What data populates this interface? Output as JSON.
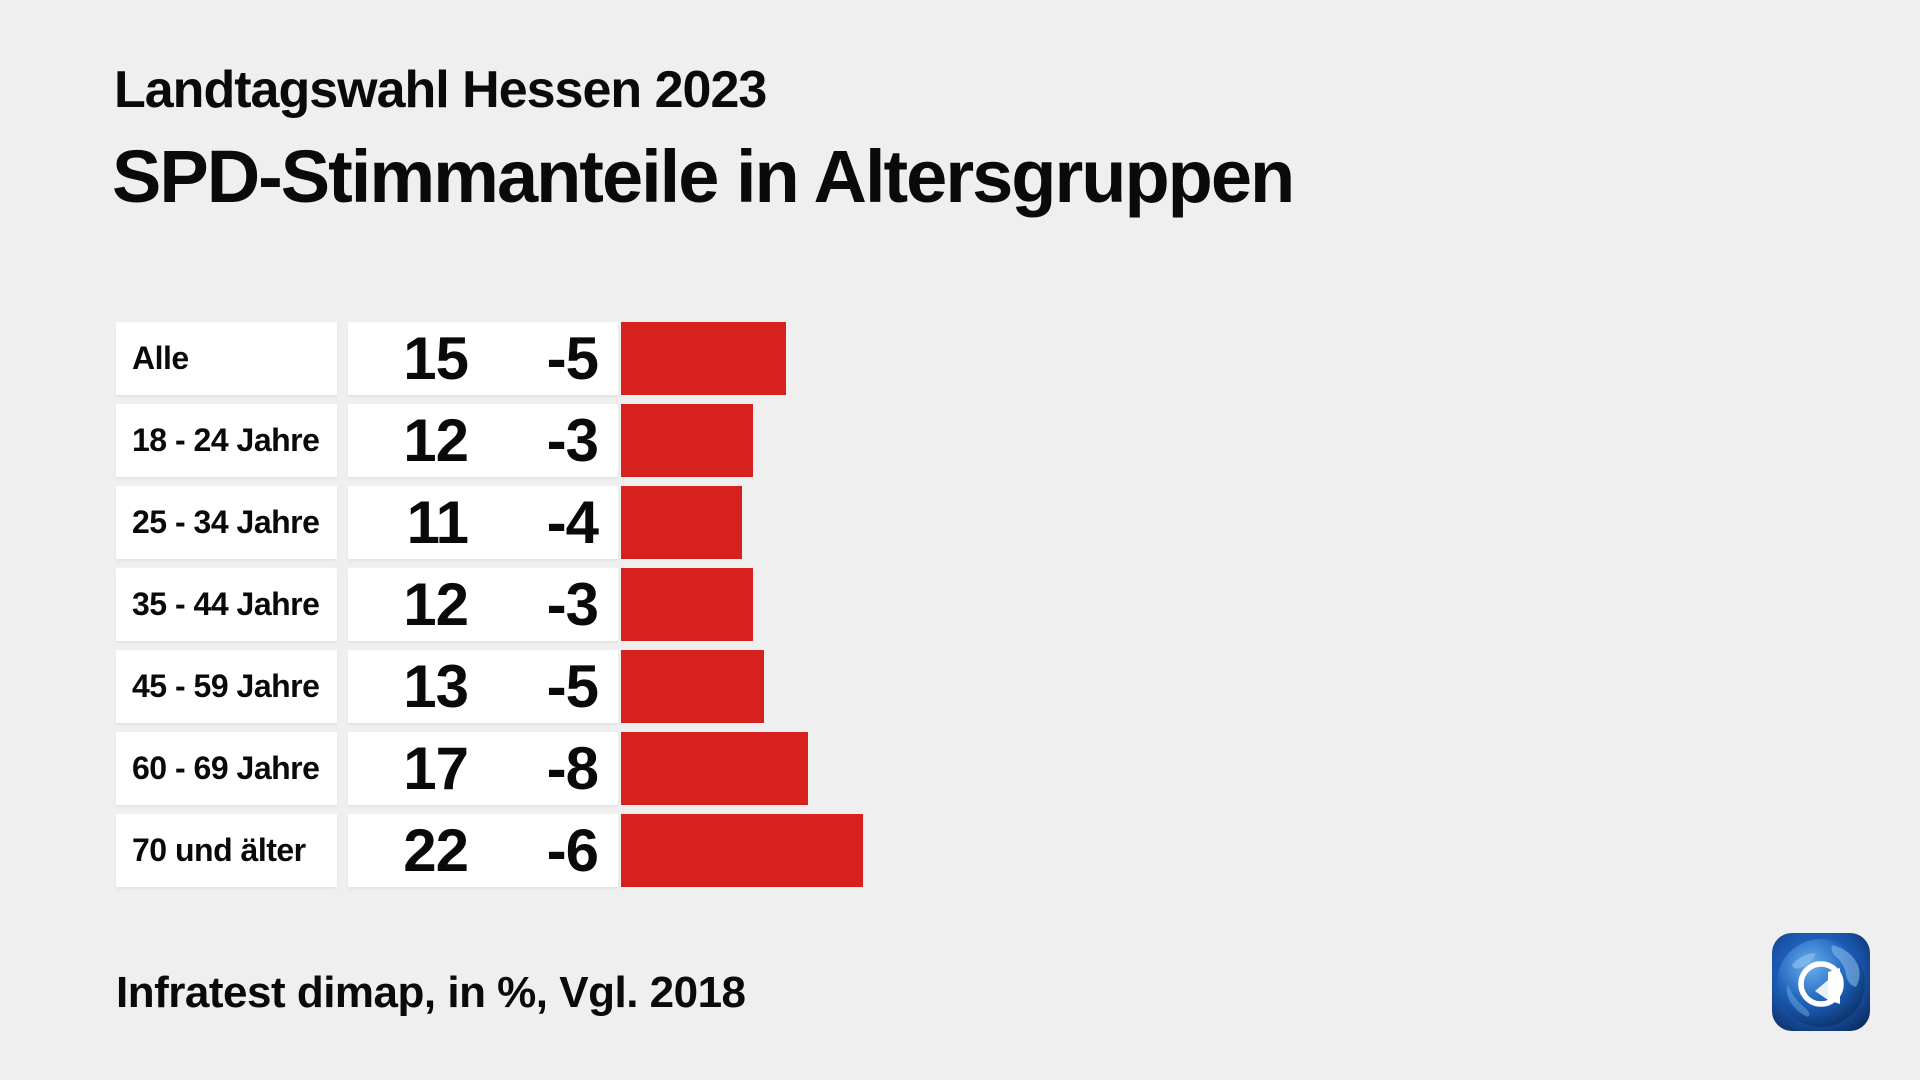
{
  "header": {
    "subtitle": "Landtagswahl Hessen 2023",
    "title": "SPD-Stimmanteile in Altersgruppen"
  },
  "footer": {
    "source": "Infratest dimap, in %, Vgl. 2018"
  },
  "logo": {
    "name": "ard-tagesschau-logo",
    "colors": {
      "square_edge": "#0a2a5e",
      "square_center": "#2a7ae0",
      "globe_light": "#6ab1f0",
      "globe_dark": "#092a5c",
      "glyph": "#ffffff"
    }
  },
  "chart_data": {
    "type": "bar",
    "orientation": "horizontal",
    "title": "SPD-Stimmanteile in Altersgruppen",
    "subtitle": "Landtagswahl Hessen 2023",
    "source_note": "Infratest dimap, in %, Vgl. 2018",
    "unit": "%",
    "comparison_year": "2018",
    "categories": [
      "Alle",
      "18 - 24 Jahre",
      "25 - 34 Jahre",
      "35 - 44 Jahre",
      "45 - 59 Jahre",
      "60 - 69 Jahre",
      "70 und älter"
    ],
    "values": [
      15,
      12,
      11,
      12,
      13,
      17,
      22
    ],
    "changes": [
      "-5",
      "-3",
      "-4",
      "-3",
      "-5",
      "-8",
      "-6"
    ],
    "bar_color": "#d7211e",
    "xlim": [
      0,
      25
    ],
    "grid": false,
    "legend": false
  }
}
